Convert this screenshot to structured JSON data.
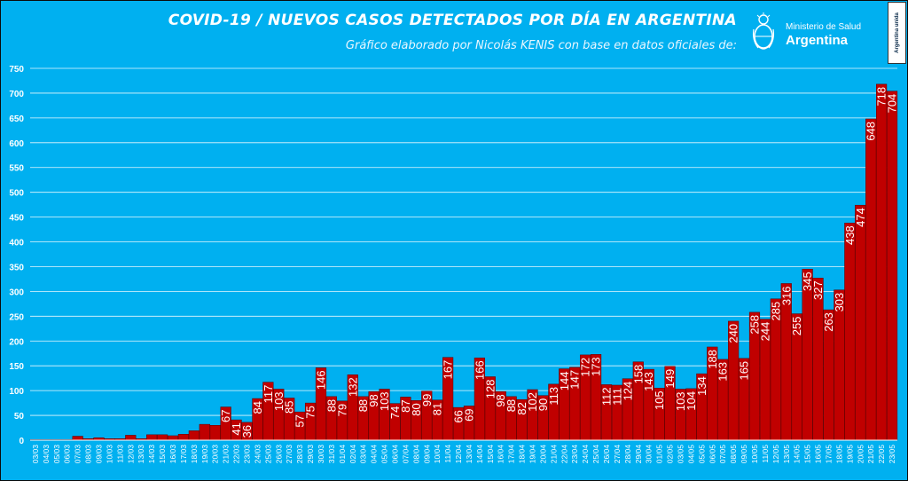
{
  "header": {
    "title": "COVID-19  /  NUEVOS CASOS DETECTADOS POR DÍA EN ARGENTINA",
    "subtitle": "Gráfico elaborado por Nicolás KENIS con base en datos oficiales de:",
    "logo_ministerio": "Ministerio de Salud",
    "logo_country": "Argentina",
    "badge_text": "Argentina unida"
  },
  "colors": {
    "background": "#00b0f0",
    "bar": "#c00000",
    "bar_edge": "#5a0000",
    "gridline": "#ffffff",
    "text": "#ffffff"
  },
  "chart_data": {
    "type": "bar",
    "title": "COVID-19  /  NUEVOS CASOS DETECTADOS POR DÍA EN ARGENTINA",
    "xlabel": "",
    "ylabel": "",
    "ylim": [
      0,
      750
    ],
    "yticks": [
      0,
      50,
      100,
      150,
      200,
      250,
      300,
      350,
      400,
      450,
      500,
      550,
      600,
      650,
      700,
      750
    ],
    "grid": true,
    "legend": "none",
    "categories": [
      "03/03",
      "04/03",
      "05/03",
      "06/03",
      "07/03",
      "08/03",
      "09/03",
      "10/03",
      "11/03",
      "12/03",
      "13/03",
      "14/03",
      "15/03",
      "16/03",
      "17/03",
      "18/03",
      "19/03",
      "20/03",
      "21/03",
      "22/03",
      "23/03",
      "24/03",
      "25/03",
      "26/03",
      "27/03",
      "28/03",
      "29/03",
      "30/03",
      "31/03",
      "01/04",
      "02/04",
      "03/04",
      "04/04",
      "05/04",
      "06/04",
      "07/04",
      "08/04",
      "09/04",
      "10/04",
      "11/04",
      "12/04",
      "13/04",
      "14/04",
      "15/04",
      "16/04",
      "17/04",
      "18/04",
      "19/04",
      "20/04",
      "21/04",
      "22/04",
      "23/04",
      "24/04",
      "25/04",
      "26/04",
      "27/04",
      "28/04",
      "29/04",
      "30/04",
      "01/05",
      "02/05",
      "03/05",
      "04/05",
      "05/05",
      "06/05",
      "07/05",
      "08/05",
      "09/05",
      "10/05",
      "11/05",
      "12/05",
      "13/05",
      "14/05",
      "15/05",
      "16/05",
      "17/05",
      "18/05",
      "19/05",
      "20/05",
      "21/05",
      "22/05",
      "23/05"
    ],
    "values": [
      1,
      0,
      0,
      1,
      8,
      3,
      5,
      3,
      3,
      10,
      3,
      11,
      11,
      9,
      12,
      19,
      32,
      30,
      67,
      41,
      36,
      84,
      117,
      103,
      85,
      57,
      75,
      146,
      88,
      79,
      132,
      88,
      98,
      103,
      74,
      87,
      80,
      99,
      81,
      167,
      66,
      69,
      166,
      128,
      98,
      88,
      82,
      102,
      90,
      113,
      144,
      147,
      172,
      173,
      112,
      111,
      124,
      158,
      143,
      105,
      149,
      103,
      104,
      134,
      188,
      163,
      240,
      165,
      258,
      244,
      285,
      316,
      255,
      345,
      327,
      263,
      303,
      438,
      474,
      648,
      718,
      704
    ],
    "value_labels": [
      "",
      "",
      "",
      "",
      "",
      "",
      "",
      "",
      "",
      "",
      "",
      "",
      "",
      "",
      "",
      "",
      "",
      "",
      "67",
      "41",
      "36",
      "84",
      "117",
      "103",
      "85",
      "57",
      "75",
      "146",
      "88",
      "79",
      "132",
      "88",
      "98",
      "103",
      "74",
      "87",
      "80",
      "99",
      "81",
      "167",
      "66",
      "69",
      "166",
      "128",
      "98",
      "88",
      "82",
      "102",
      "90",
      "113",
      "144",
      "147",
      "172",
      "173",
      "112",
      "111",
      "124",
      "158",
      "143",
      "105",
      "149",
      "103",
      "104",
      "134",
      "188",
      "163",
      "240",
      "165",
      "258",
      "244",
      "285",
      "316",
      "255",
      "345",
      "327",
      "263",
      "303",
      "438",
      "474",
      "648",
      "718",
      "704"
    ]
  }
}
